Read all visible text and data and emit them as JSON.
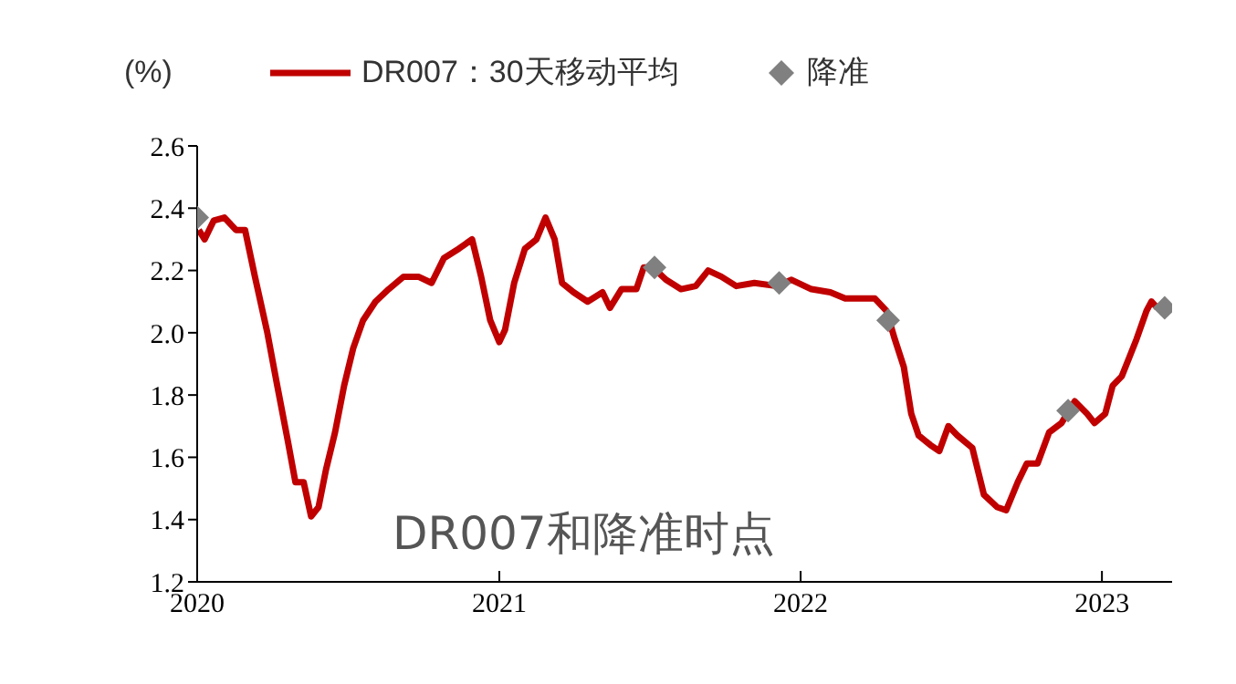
{
  "chart_data": {
    "type": "line",
    "title": "DR007和降准时点",
    "ylabel": "(%)",
    "xlim": [
      "2020-01-01",
      "2023-03-27"
    ],
    "xticks": [
      "2020",
      "2021",
      "2022",
      "2023"
    ],
    "ylim": [
      1.2,
      2.6
    ],
    "yticks": [
      {
        "value": 1.2,
        "label": "1.2"
      },
      {
        "value": 1.4,
        "label": "1.4"
      },
      {
        "value": 1.6,
        "label": "1.6"
      },
      {
        "value": 1.8,
        "label": "1.8"
      },
      {
        "value": 2.0,
        "label": "2.0"
      },
      {
        "value": 2.2,
        "label": "2.2"
      },
      {
        "value": 2.4,
        "label": "2.4"
      },
      {
        "value": 2.6,
        "label": "2.6"
      }
    ],
    "grid": false,
    "legend": "top",
    "marker": "none",
    "line_style": "solid",
    "series": [
      {
        "name": "DR007：30天移动平均",
        "color": "#c00000",
        "x": [
          "2020-01-03",
          "2020-01-10",
          "2020-01-21",
          "2020-02-03",
          "2020-02-17",
          "2020-02-28",
          "2020-03-11",
          "2020-03-26",
          "2020-04-07",
          "2020-04-20",
          "2020-04-29",
          "2020-05-09",
          "2020-05-18",
          "2020-05-27",
          "2020-06-05",
          "2020-06-16",
          "2020-06-27",
          "2020-07-08",
          "2020-07-20",
          "2020-08-04",
          "2020-08-20",
          "2020-09-07",
          "2020-09-25",
          "2020-10-11",
          "2020-10-26",
          "2020-11-13",
          "2020-11-29",
          "2020-12-10",
          "2020-12-21",
          "2021-01-01",
          "2021-01-08",
          "2021-01-19",
          "2021-02-01",
          "2021-02-15",
          "2021-02-26",
          "2021-03-09",
          "2021-03-18",
          "2021-04-01",
          "2021-04-18",
          "2021-05-06",
          "2021-05-15",
          "2021-05-29",
          "2021-06-16",
          "2021-06-25",
          "2021-07-06",
          "2021-07-22",
          "2021-08-09",
          "2021-08-27",
          "2021-09-11",
          "2021-09-27",
          "2021-10-15",
          "2021-11-06",
          "2021-12-03",
          "2021-12-21",
          "2022-01-14",
          "2022-02-06",
          "2022-02-24",
          "2022-03-13",
          "2022-04-01",
          "2022-04-15",
          "2022-04-25",
          "2022-05-06",
          "2022-05-15",
          "2022-05-24",
          "2022-06-07",
          "2022-06-18",
          "2022-06-29",
          "2022-07-10",
          "2022-07-28",
          "2022-08-11",
          "2022-08-27",
          "2022-09-07",
          "2022-09-21",
          "2022-10-02",
          "2022-10-15",
          "2022-10-29",
          "2022-11-13",
          "2022-11-29",
          "2022-12-14",
          "2022-12-23",
          "2023-01-05",
          "2023-01-14",
          "2023-01-25",
          "2023-02-03",
          "2023-02-12",
          "2023-02-24",
          "2023-03-02",
          "2023-03-09"
        ],
        "values": [
          2.33,
          2.3,
          2.36,
          2.37,
          2.33,
          2.33,
          2.18,
          2.0,
          1.83,
          1.65,
          1.52,
          1.52,
          1.41,
          1.44,
          1.56,
          1.68,
          1.83,
          1.95,
          2.04,
          2.1,
          2.14,
          2.18,
          2.18,
          2.16,
          2.24,
          2.27,
          2.3,
          2.18,
          2.04,
          1.97,
          2.01,
          2.16,
          2.27,
          2.3,
          2.37,
          2.3,
          2.16,
          2.13,
          2.1,
          2.13,
          2.08,
          2.14,
          2.14,
          2.21,
          2.21,
          2.17,
          2.14,
          2.15,
          2.2,
          2.18,
          2.15,
          2.16,
          2.15,
          2.17,
          2.14,
          2.13,
          2.11,
          2.11,
          2.11,
          2.07,
          1.98,
          1.89,
          1.74,
          1.67,
          1.64,
          1.62,
          1.7,
          1.67,
          1.63,
          1.48,
          1.44,
          1.43,
          1.52,
          1.58,
          1.58,
          1.68,
          1.71,
          1.78,
          1.74,
          1.71,
          1.74,
          1.83,
          1.86,
          1.92,
          1.98,
          2.07,
          2.1,
          2.08
        ]
      },
      {
        "name": "降准",
        "type": "scatter",
        "marker": "diamond",
        "color": "#808080",
        "x": [
          "2020-01-01",
          "2021-07-08",
          "2021-12-06",
          "2022-04-17",
          "2022-11-21",
          "2023-03-18"
        ],
        "values": [
          2.37,
          2.21,
          2.16,
          2.04,
          1.75,
          2.08
        ]
      }
    ]
  }
}
